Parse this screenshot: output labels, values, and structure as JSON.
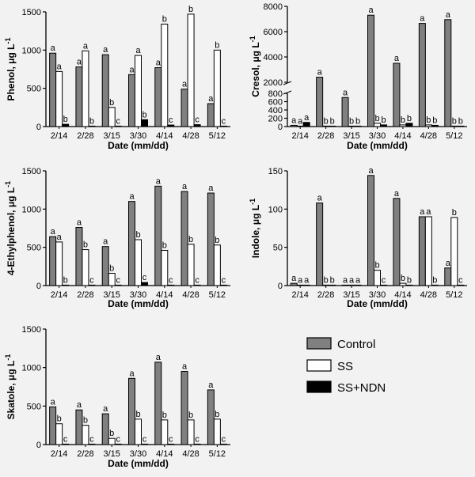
{
  "legend": {
    "entries": [
      "Control",
      "SS",
      "SS+NDN"
    ],
    "colors": [
      "#808080",
      "#ffffff",
      "#000000"
    ],
    "placement": "bottom-right"
  },
  "chart_data": [
    {
      "type": "bar",
      "title": "",
      "xlabel": "Date (mm/dd)",
      "ylabel_main": "Phenol, μg L",
      "ylabel_sup": "-1",
      "categories": [
        "2/14",
        "2/28",
        "3/15",
        "3/30",
        "4/14",
        "4/28",
        "5/12"
      ],
      "ylim": [
        0,
        1500
      ],
      "yticks": [
        0,
        500,
        1000,
        1500
      ],
      "series": [
        {
          "name": "Control",
          "values": [
            960,
            780,
            940,
            680,
            770,
            490,
            300
          ]
        },
        {
          "name": "SS",
          "values": [
            720,
            990,
            250,
            930,
            1340,
            1470,
            1000
          ]
        },
        {
          "name": "SS+NDN",
          "values": [
            30,
            5,
            5,
            90,
            20,
            25,
            5
          ]
        }
      ],
      "letters": [
        [
          "a",
          "a",
          "b"
        ],
        [
          "a",
          "a",
          "b"
        ],
        [
          "a",
          "b",
          "c"
        ],
        [
          "a",
          "a",
          "b"
        ],
        [
          "a",
          "b",
          "c"
        ],
        [
          "a",
          "b",
          "c"
        ],
        [
          "a",
          "b",
          "c"
        ]
      ]
    },
    {
      "type": "bar",
      "title": "",
      "xlabel": "Date (mm/dd)",
      "ylabel_main": "Cresol, μg L",
      "ylabel_sup": "-1",
      "categories": [
        "2/14",
        "2/28",
        "3/15",
        "3/30",
        "4/14",
        "4/28",
        "5/12"
      ],
      "ylim": [
        0,
        8000
      ],
      "y_axis_break": {
        "lower": [
          0,
          800
        ],
        "upper": [
          2000,
          8000
        ]
      },
      "yticks_lower": [
        0,
        200,
        400,
        600,
        800
      ],
      "yticks_upper": [
        2000,
        4000,
        6000,
        8000
      ],
      "series": [
        {
          "name": "Control",
          "values": [
            30,
            2400,
            700,
            7300,
            3500,
            6650,
            6950
          ]
        },
        {
          "name": "SS",
          "values": [
            5,
            5,
            5,
            80,
            40,
            40,
            5
          ]
        },
        {
          "name": "SS+NDN",
          "values": [
            100,
            5,
            5,
            40,
            80,
            30,
            5
          ]
        }
      ],
      "letters": [
        [
          "a",
          "a",
          "a"
        ],
        [
          "a",
          "b",
          "b"
        ],
        [
          "a",
          "b",
          "b"
        ],
        [
          "a",
          "b",
          "b"
        ],
        [
          "a",
          "b",
          "b"
        ],
        [
          "a",
          "b",
          "b"
        ],
        [
          "a",
          "b",
          "b"
        ]
      ]
    },
    {
      "type": "bar",
      "title": "",
      "xlabel": "Date (mm/dd)",
      "ylabel_main": "4-Ethylphenol, μg L",
      "ylabel_sup": "-1",
      "categories": [
        "2/14",
        "2/28",
        "3/15",
        "3/30",
        "4/14",
        "4/28",
        "5/12"
      ],
      "ylim": [
        0,
        1500
      ],
      "yticks": [
        0,
        500,
        1000,
        1500
      ],
      "series": [
        {
          "name": "Control",
          "values": [
            640,
            760,
            510,
            1100,
            1300,
            1230,
            1210
          ]
        },
        {
          "name": "SS",
          "values": [
            570,
            470,
            160,
            600,
            460,
            540,
            530
          ]
        },
        {
          "name": "SS+NDN",
          "values": [
            5,
            5,
            5,
            40,
            5,
            5,
            5
          ]
        }
      ],
      "letters": [
        [
          "a",
          "a",
          "b"
        ],
        [
          "a",
          "b",
          "c"
        ],
        [
          "a",
          "b",
          "c"
        ],
        [
          "a",
          "b",
          "c"
        ],
        [
          "a",
          "b",
          "c"
        ],
        [
          "a",
          "b",
          "c"
        ],
        [
          "a",
          "b",
          "c"
        ]
      ]
    },
    {
      "type": "bar",
      "title": "",
      "xlabel": "Date (mm/dd)",
      "ylabel_main": "Indole, μg L",
      "ylabel_sup": "-1",
      "categories": [
        "2/14",
        "2/28",
        "3/15",
        "3/30",
        "4/14",
        "4/28",
        "5/12"
      ],
      "ylim": [
        0,
        150
      ],
      "yticks": [
        0,
        50,
        100,
        150
      ],
      "series": [
        {
          "name": "Control",
          "values": [
            3,
            108,
            0.5,
            144,
            114,
            90,
            23
          ]
        },
        {
          "name": "SS",
          "values": [
            0.5,
            0.5,
            0.5,
            20,
            3,
            90,
            89
          ]
        },
        {
          "name": "SS+NDN",
          "values": [
            0.5,
            0.5,
            0.5,
            0.5,
            0.5,
            0.5,
            0.5
          ]
        }
      ],
      "letters": [
        [
          "a",
          "a",
          "a"
        ],
        [
          "a",
          "b",
          "b"
        ],
        [
          "a",
          "a",
          "a"
        ],
        [
          "a",
          "b",
          "c"
        ],
        [
          "a",
          "b",
          "b"
        ],
        [
          "a",
          "a",
          "b"
        ],
        [
          "a",
          "b",
          "c"
        ]
      ]
    },
    {
      "type": "bar",
      "title": "",
      "xlabel": "Date (mm/dd)",
      "ylabel_main": "Skatole, μg L",
      "ylabel_sup": "-1",
      "categories": [
        "2/14",
        "2/28",
        "3/15",
        "3/30",
        "4/14",
        "4/28",
        "5/12"
      ],
      "ylim": [
        0,
        1500
      ],
      "yticks": [
        0,
        500,
        1000,
        1500
      ],
      "series": [
        {
          "name": "Control",
          "values": [
            490,
            450,
            400,
            860,
            1070,
            950,
            710
          ]
        },
        {
          "name": "SS",
          "values": [
            270,
            250,
            80,
            330,
            320,
            320,
            330
          ]
        },
        {
          "name": "SS+NDN",
          "values": [
            5,
            5,
            5,
            5,
            5,
            5,
            5
          ]
        }
      ],
      "letters": [
        [
          "a",
          "b",
          "c"
        ],
        [
          "a",
          "b",
          "c"
        ],
        [
          "a",
          "b",
          "c"
        ],
        [
          "a",
          "b",
          "c"
        ],
        [
          "a",
          "b",
          "c"
        ],
        [
          "a",
          "b",
          "c"
        ],
        [
          "a",
          "b",
          "c"
        ]
      ]
    }
  ]
}
